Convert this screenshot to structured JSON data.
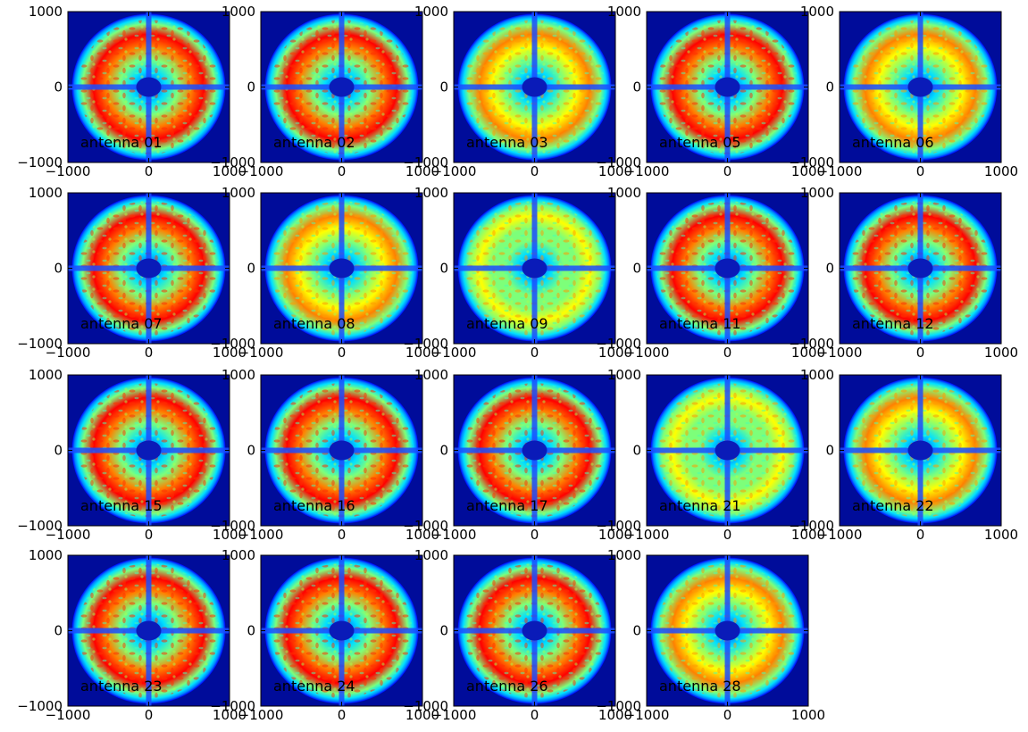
{
  "chart_data": {
    "type": "heatmap",
    "layout": {
      "rows": 4,
      "cols": 5
    },
    "colormap": "jet",
    "colormap_stops": [
      "#00007f",
      "#0000ff",
      "#0080ff",
      "#00e0ff",
      "#7dff7a",
      "#ffff00",
      "#ff8000",
      "#ff0000",
      "#7f0000"
    ],
    "xlim": [
      -1000,
      1000
    ],
    "ylim": [
      -1000,
      1000
    ],
    "xticks": [
      -1000,
      0,
      1000
    ],
    "yticks": [
      -1000,
      0,
      1000
    ],
    "xtick_labels": [
      "−1000",
      "0",
      "1000"
    ],
    "ytick_labels": [
      "−1000",
      "0",
      "1000"
    ],
    "panels": [
      {
        "label": "antenna 01",
        "level": 0.74
      },
      {
        "label": "antenna 02",
        "level": 0.74
      },
      {
        "label": "antenna 03",
        "level": 0.68
      },
      {
        "label": "antenna 05",
        "level": 0.8
      },
      {
        "label": "antenna 06",
        "level": 0.66
      },
      {
        "label": "antenna 07",
        "level": 0.74
      },
      {
        "label": "antenna 08",
        "level": 0.68
      },
      {
        "label": "antenna 09",
        "level": 0.55
      },
      {
        "label": "antenna 11",
        "level": 0.76
      },
      {
        "label": "antenna 12",
        "level": 0.8
      },
      {
        "label": "antenna 15",
        "level": 0.82
      },
      {
        "label": "antenna 16",
        "level": 0.72
      },
      {
        "label": "antenna 17",
        "level": 0.72
      },
      {
        "label": "antenna 21",
        "level": 0.55
      },
      {
        "label": "antenna 22",
        "level": 0.68
      },
      {
        "label": "antenna 23",
        "level": 0.72
      },
      {
        "label": "antenna 24",
        "level": 0.76
      },
      {
        "label": "antenna 26",
        "level": 0.72
      },
      {
        "label": "antenna 28",
        "level": 0.66
      }
    ]
  }
}
